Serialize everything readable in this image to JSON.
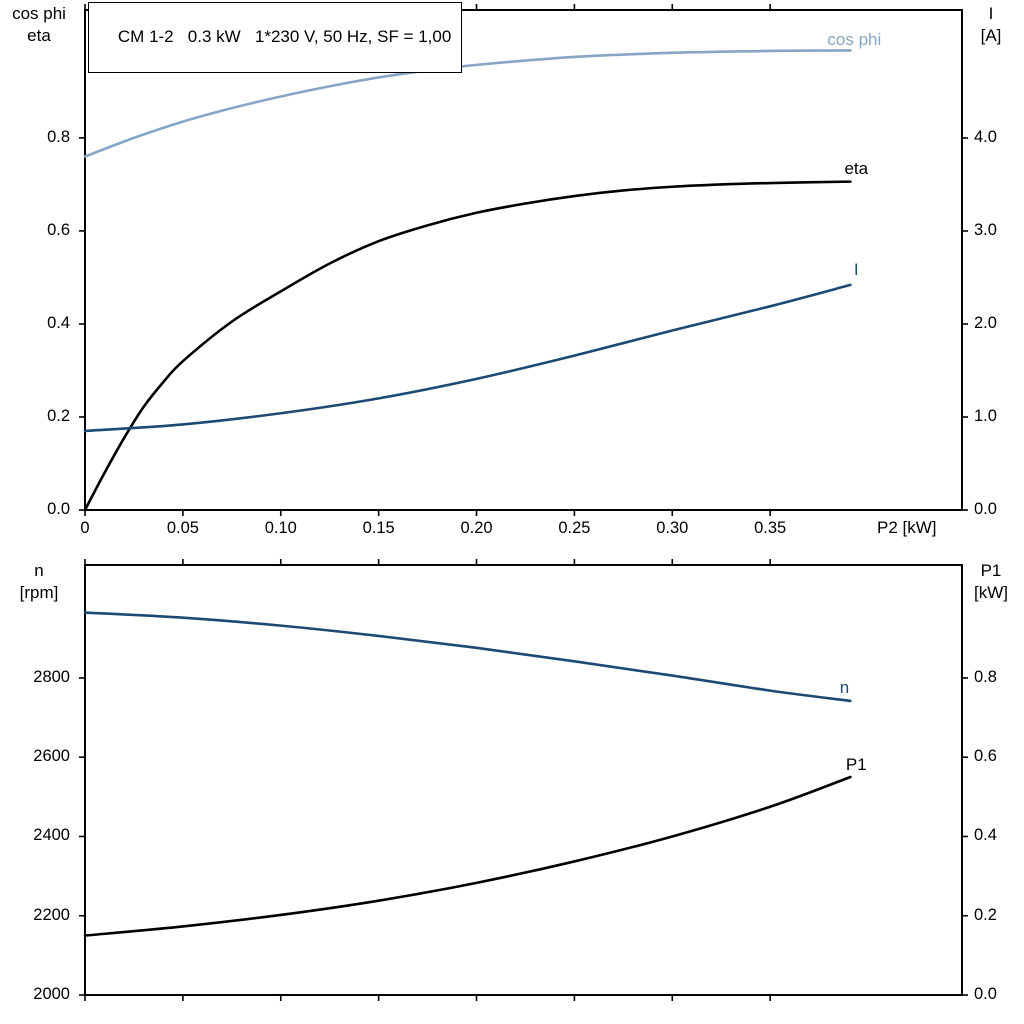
{
  "header": {
    "title": "CM 1-2   0.3 kW   1*230 V, 50 Hz, SF = 1,00"
  },
  "colors": {
    "black": "#000000",
    "dark_blue": "#1c4a72",
    "light_blue": "#87a5c4",
    "axis": "#000000",
    "background": "#ffffff"
  },
  "chart_data": [
    {
      "type": "line",
      "title": "",
      "xlabel": "P2 [kW]",
      "left_axis_title": [
        "cos phi",
        "eta"
      ],
      "right_axis_title": [
        "I",
        "[A]"
      ],
      "xlim": [
        0,
        0.448
      ],
      "x_ticks": [
        0,
        0.05,
        0.1,
        0.15,
        0.2,
        0.25,
        0.3,
        0.35
      ],
      "x_tick_labels": [
        "0",
        "0.05",
        "0.10",
        "0.15",
        "0.20",
        "0.25",
        "0.30",
        "0.35"
      ],
      "left_ylim": [
        0,
        1.075
      ],
      "left_ticks": [
        0,
        0.2,
        0.4,
        0.6,
        0.8
      ],
      "left_tick_labels": [
        "0.0",
        "0.2",
        "0.4",
        "0.6",
        "0.8"
      ],
      "right_ylim": [
        0,
        5.376
      ],
      "right_ticks": [
        0,
        1,
        2,
        3,
        4
      ],
      "right_tick_labels": [
        "0.0",
        "1.0",
        "2.0",
        "3.0",
        "4.0"
      ],
      "grid": false,
      "legend_position": "on-curve",
      "series": [
        {
          "name": "cos phi",
          "axis": "left",
          "color_key": "light_blue",
          "label_pos": [
            0.393,
            1.011
          ],
          "points": [
            [
              0,
              0.76
            ],
            [
              0.025,
              0.8
            ],
            [
              0.05,
              0.835
            ],
            [
              0.075,
              0.864
            ],
            [
              0.1,
              0.889
            ],
            [
              0.125,
              0.911
            ],
            [
              0.15,
              0.93
            ],
            [
              0.175,
              0.945
            ],
            [
              0.2,
              0.957
            ],
            [
              0.25,
              0.974
            ],
            [
              0.3,
              0.983
            ],
            [
              0.35,
              0.987
            ],
            [
              0.391,
              0.988
            ]
          ]
        },
        {
          "name": "eta",
          "axis": "left",
          "color_key": "black",
          "label_pos": [
            0.394,
            0.733
          ],
          "points": [
            [
              0,
              0
            ],
            [
              0.01,
              0.08
            ],
            [
              0.02,
              0.155
            ],
            [
              0.03,
              0.222
            ],
            [
              0.04,
              0.275
            ],
            [
              0.05,
              0.32
            ],
            [
              0.075,
              0.405
            ],
            [
              0.1,
              0.47
            ],
            [
              0.125,
              0.53
            ],
            [
              0.15,
              0.578
            ],
            [
              0.175,
              0.612
            ],
            [
              0.2,
              0.639
            ],
            [
              0.225,
              0.659
            ],
            [
              0.25,
              0.675
            ],
            [
              0.275,
              0.687
            ],
            [
              0.3,
              0.695
            ],
            [
              0.325,
              0.7
            ],
            [
              0.35,
              0.703
            ],
            [
              0.391,
              0.706
            ]
          ]
        },
        {
          "name": "I",
          "axis": "right",
          "color_key": "dark_blue",
          "label_pos": [
            0.394,
            2.58
          ],
          "points": [
            [
              0,
              0.85
            ],
            [
              0.05,
              0.92
            ],
            [
              0.1,
              1.04
            ],
            [
              0.15,
              1.2
            ],
            [
              0.2,
              1.41
            ],
            [
              0.25,
              1.66
            ],
            [
              0.3,
              1.93
            ],
            [
              0.35,
              2.19
            ],
            [
              0.391,
              2.42
            ]
          ]
        }
      ]
    },
    {
      "type": "line",
      "title": "",
      "xlabel": "",
      "left_axis_title": [
        "n",
        "[rpm]"
      ],
      "right_axis_title": [
        "P1",
        "[kW]"
      ],
      "xlim": [
        0,
        0.448
      ],
      "x_ticks": [
        0,
        0.05,
        0.1,
        0.15,
        0.2,
        0.25,
        0.3,
        0.35
      ],
      "x_tick_labels": [],
      "left_ylim": [
        2000,
        3085
      ],
      "left_ticks": [
        2000,
        2200,
        2400,
        2600,
        2800
      ],
      "left_tick_labels": [
        "2000",
        "2200",
        "2400",
        "2600",
        "2800"
      ],
      "right_ylim": [
        0,
        1.085
      ],
      "right_ticks": [
        0,
        0.2,
        0.4,
        0.6,
        0.8
      ],
      "right_tick_labels": [
        "0.0",
        "0.2",
        "0.4",
        "0.6",
        "0.8"
      ],
      "grid": false,
      "legend_position": "on-curve",
      "series": [
        {
          "name": "n",
          "axis": "left",
          "color_key": "dark_blue",
          "label_pos": [
            0.388,
            2775
          ],
          "points": [
            [
              0,
              2965
            ],
            [
              0.05,
              2952
            ],
            [
              0.1,
              2932
            ],
            [
              0.15,
              2906
            ],
            [
              0.2,
              2876
            ],
            [
              0.25,
              2842
            ],
            [
              0.3,
              2806
            ],
            [
              0.35,
              2768
            ],
            [
              0.391,
              2742
            ]
          ]
        },
        {
          "name": "P1",
          "axis": "right",
          "color_key": "black",
          "label_pos": [
            0.394,
            0.58
          ],
          "points": [
            [
              0,
              0.15
            ],
            [
              0.05,
              0.173
            ],
            [
              0.1,
              0.202
            ],
            [
              0.15,
              0.238
            ],
            [
              0.2,
              0.283
            ],
            [
              0.25,
              0.337
            ],
            [
              0.3,
              0.4
            ],
            [
              0.35,
              0.475
            ],
            [
              0.391,
              0.55
            ]
          ]
        }
      ]
    }
  ]
}
